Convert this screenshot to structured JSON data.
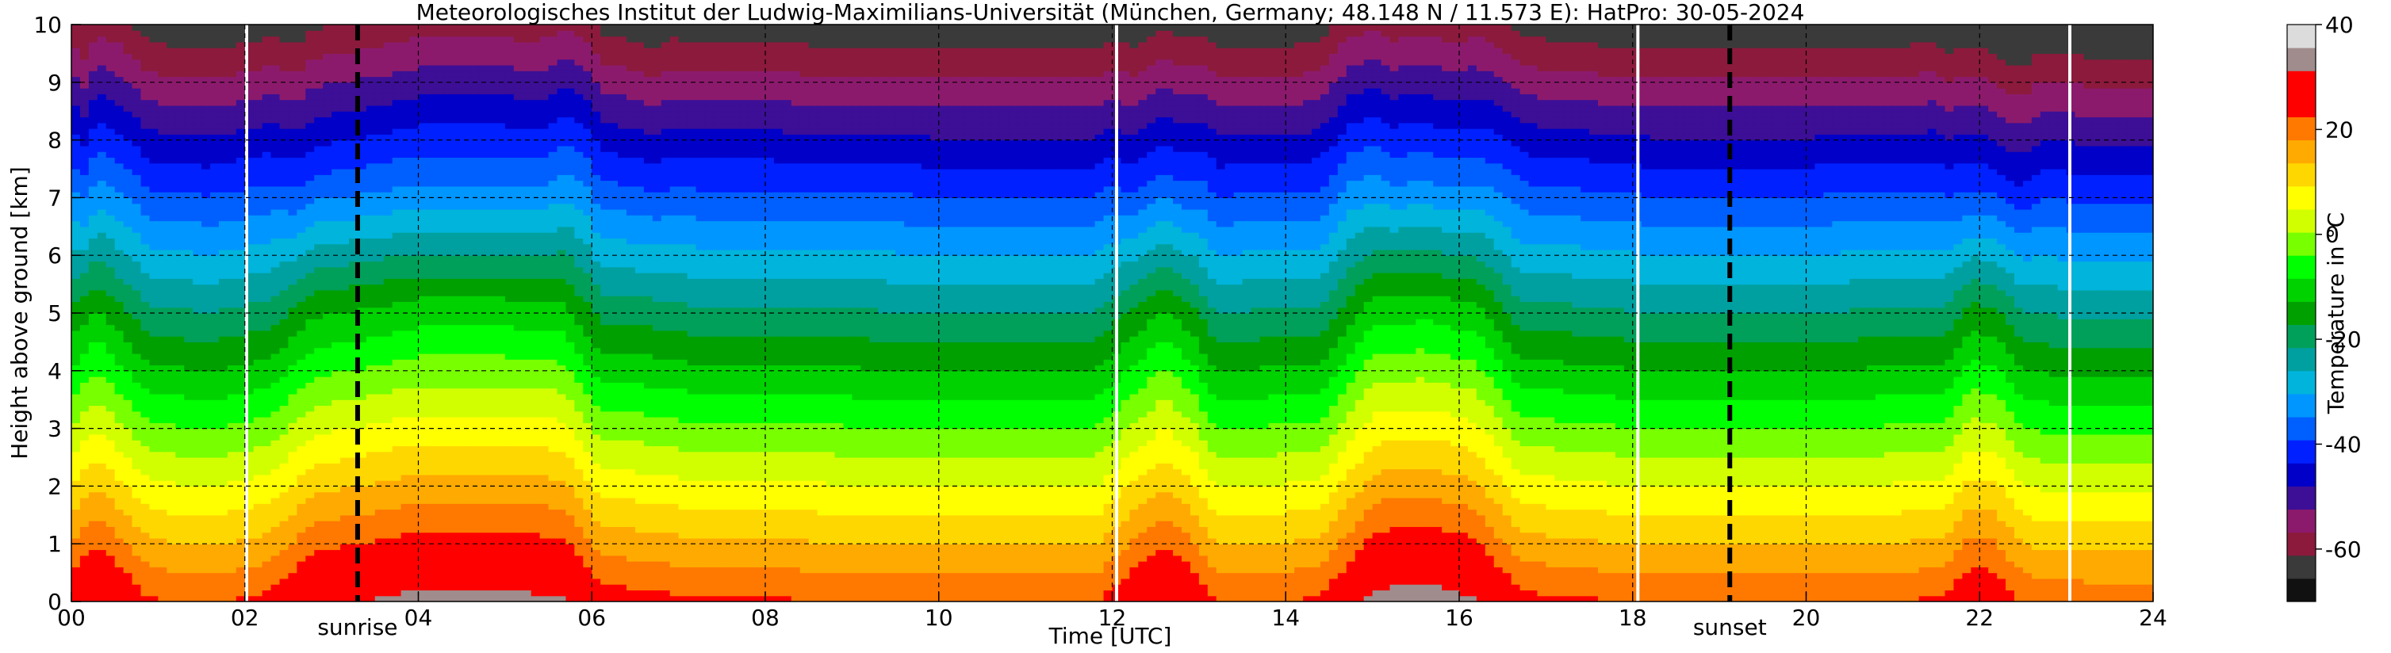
{
  "chart_data": {
    "type": "heatmap",
    "title": "Meteorologisches Institut der Ludwig-Maximilians-Universität (München, Germany; 48.148 N / 11.573 E):    HatPro: 30-05-2024",
    "xlabel": "Time [UTC]",
    "ylabel": "Height above ground [km]",
    "xlim": [
      0,
      24
    ],
    "ylim": [
      0,
      10
    ],
    "x_ticks": [
      "00",
      "02",
      "04",
      "06",
      "08",
      "10",
      "12",
      "14",
      "16",
      "18",
      "20",
      "22",
      "24"
    ],
    "y_ticks": [
      "0",
      "1",
      "2",
      "3",
      "4",
      "5",
      "6",
      "7",
      "8",
      "9",
      "10"
    ],
    "grid": true,
    "colorbar": {
      "label": "Temperature in °C",
      "range": [
        -70,
        40
      ],
      "ticks": [
        "40",
        "20",
        "0",
        "-20",
        "-40",
        "-60"
      ],
      "tick_values": [
        40,
        20,
        0,
        -20,
        -40,
        -60
      ],
      "colors": [
        "#111111",
        "#3a3a3a",
        "#8c1a3c",
        "#8c1a6c",
        "#3c0f96",
        "#0000c8",
        "#0020ff",
        "#0060ff",
        "#0096ff",
        "#00b4dc",
        "#00a0a0",
        "#00a05a",
        "#00a000",
        "#00d200",
        "#00ff00",
        "#78ff00",
        "#d2ff00",
        "#ffff00",
        "#ffd700",
        "#ffaa00",
        "#ff7800",
        "#ff0000",
        "#ff0000",
        "#a08c8c",
        "#dcdcdc"
      ]
    },
    "markers": [
      {
        "label": "sunrise",
        "x": 3.3
      },
      {
        "label": "sunset",
        "x": 19.12
      }
    ],
    "data_gaps_x": [
      2.02,
      12.05,
      18.06,
      23.04
    ],
    "profile_model": {
      "surface_temp_time": [
        [
          0,
          27
        ],
        [
          0.3,
          31
        ],
        [
          0.9,
          23
        ],
        [
          1.6,
          22
        ],
        [
          2.3,
          24
        ],
        [
          2.8,
          30
        ],
        [
          3.3,
          31
        ],
        [
          4.0,
          33
        ],
        [
          5.0,
          33
        ],
        [
          5.7,
          32
        ],
        [
          6.1,
          25
        ],
        [
          6.8,
          24
        ],
        [
          7.2,
          23
        ],
        [
          8,
          23
        ],
        [
          10,
          22
        ],
        [
          11,
          22
        ],
        [
          11.8,
          22
        ],
        [
          12.3,
          28
        ],
        [
          12.6,
          31
        ],
        [
          12.9,
          28
        ],
        [
          13.2,
          22
        ],
        [
          14.4,
          23
        ],
        [
          15.0,
          33
        ],
        [
          15.6,
          34
        ],
        [
          16.2,
          32
        ],
        [
          16.7,
          24
        ],
        [
          18.2,
          22
        ],
        [
          20,
          22
        ],
        [
          21.6,
          23
        ],
        [
          21.9,
          28
        ],
        [
          22.2,
          27
        ],
        [
          22.5,
          22
        ],
        [
          23.2,
          21
        ],
        [
          24,
          21
        ]
      ],
      "lapse_rate_per_km": -8.7,
      "cold_dome_time_km": [
        [
          0,
          0
        ],
        [
          0.15,
          0.6
        ],
        [
          0.5,
          0.1
        ],
        [
          0.8,
          0
        ],
        [
          2.3,
          0
        ],
        [
          2.6,
          0.8
        ],
        [
          5.4,
          0.8
        ],
        [
          5.9,
          0
        ],
        [
          6.8,
          0.3
        ],
        [
          6.9,
          0
        ],
        [
          11.9,
          0
        ],
        [
          12.3,
          0.9
        ],
        [
          12.8,
          0.9
        ],
        [
          13.1,
          0
        ],
        [
          14.7,
          0
        ],
        [
          15.2,
          0.9
        ],
        [
          16.0,
          0.9
        ],
        [
          16.6,
          0
        ],
        [
          21.5,
          0
        ],
        [
          21.9,
          0.9
        ],
        [
          22.3,
          0.9
        ],
        [
          22.7,
          0
        ],
        [
          24,
          0
        ]
      ]
    }
  }
}
